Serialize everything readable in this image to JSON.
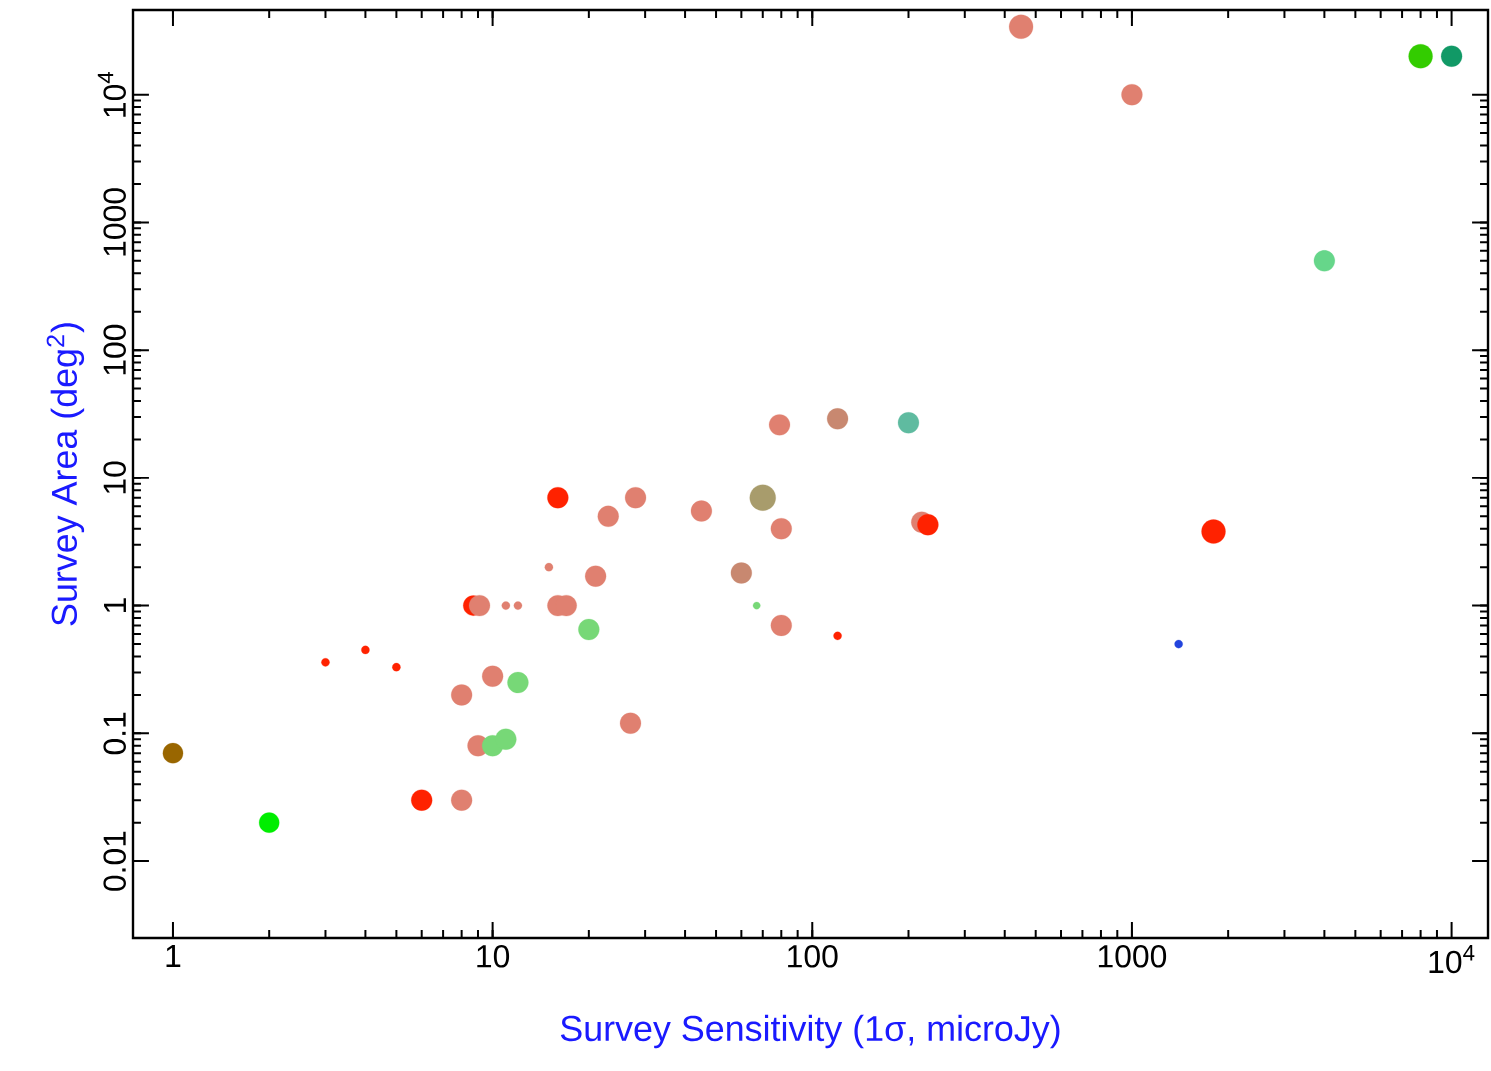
{
  "chart_data": {
    "type": "bubble",
    "xlabel": "Survey Sensitivity (1σ, microJy)",
    "ylabel": "Survey Area (deg$^{2}$)",
    "log": "xy",
    "grid": false,
    "xlim": [
      0.75,
      13000
    ],
    "ylim": [
      0.0025,
      46000
    ],
    "xticks": [
      1,
      10,
      100,
      1000,
      {
        "value": 10000,
        "label": "10$^{4}$"
      }
    ],
    "yticks": [
      0.01,
      0.1,
      1,
      10,
      100,
      1000,
      {
        "value": 10000,
        "label": "10$^{4}$"
      }
    ],
    "x": [
      1,
      2,
      3,
      4,
      5,
      6,
      8,
      8,
      8.7,
      9.1,
      9,
      10,
      10,
      11,
      12,
      11,
      12,
      15,
      16,
      16,
      17,
      20,
      21,
      23,
      28,
      27,
      45,
      60,
      67,
      70,
      79,
      80,
      80,
      120,
      120,
      200,
      220,
      230,
      450,
      1000,
      1400,
      1800,
      4000,
      8000,
      10000
    ],
    "values": [
      0.07,
      0.02,
      0.36,
      0.45,
      0.33,
      0.03,
      0.2,
      0.03,
      1,
      1,
      0.08,
      0.28,
      0.08,
      0.09,
      0.25,
      1,
      1,
      2,
      7,
      1,
      1,
      0.65,
      1.7,
      5,
      7,
      0.12,
      5.5,
      1.8,
      1,
      7,
      26,
      4,
      0.7,
      29,
      0.58,
      27,
      4.5,
      4.3,
      34000,
      10000,
      0.5,
      3.8,
      500,
      20000,
      20000
    ],
    "sizes": [
      0.6,
      0.6,
      0.1,
      0.1,
      0.1,
      0.65,
      0.65,
      0.65,
      0.6,
      0.65,
      0.65,
      0.65,
      0.65,
      0.65,
      0.65,
      0.1,
      0.1,
      0.1,
      0.65,
      0.65,
      0.65,
      0.65,
      0.65,
      0.65,
      0.65,
      0.65,
      0.65,
      0.65,
      0.08,
      1,
      0.65,
      0.65,
      0.65,
      0.65,
      0.1,
      0.65,
      0.65,
      0.65,
      0.85,
      0.65,
      0.1,
      0.85,
      0.65,
      0.85,
      0.65
    ],
    "colors": [
      "#996600",
      "#00ee00",
      "#ff2200",
      "#ff2200",
      "#ff2200",
      "#ff2200",
      "#e08070",
      "#e08070",
      "#ff2200",
      "#e08070",
      "#e08070",
      "#e08070",
      "#77d877",
      "#77d877",
      "#77d877",
      "#e08070",
      "#e08070",
      "#e08070",
      "#ff2200",
      "#e08070",
      "#e08070",
      "#77d877",
      "#e08070",
      "#e08070",
      "#e08070",
      "#e08070",
      "#e08070",
      "#c88870",
      "#77d877",
      "#a89c6c",
      "#e08070",
      "#e08070",
      "#e08070",
      "#c88870",
      "#ff2200",
      "#5fbba0",
      "#e08070",
      "#ff2200",
      "#e08070",
      "#e08070",
      "#2244dd",
      "#ff2200",
      "#66d68a",
      "#33cc00",
      "#119966"
    ]
  }
}
